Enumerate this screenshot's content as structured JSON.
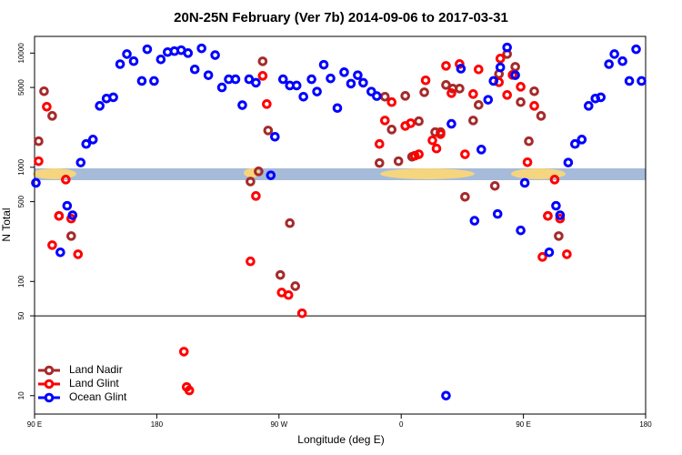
{
  "chart_data": {
    "type": "scatter",
    "title": "20N-25N February (Ver 7b)   2014-09-06 to 2017-03-31",
    "x_label": "Longitude (deg E)",
    "y_label": "N Total",
    "log_y": true,
    "legend": "bottom-left",
    "reference_line": 50,
    "xlim": [
      90,
      540
    ],
    "ylim": [
      6.9,
      14000
    ],
    "xticks": [
      {
        "value": 90,
        "label": "90 E"
      },
      180,
      {
        "value": 270,
        "label": "90 W"
      },
      {
        "value": 360,
        "label": "0"
      },
      {
        "value": 450,
        "label": "90 E"
      },
      {
        "value": 540,
        "label": "180"
      }
    ],
    "yticks": [
      10,
      50,
      100,
      500,
      1000,
      5000,
      10000
    ],
    "series": [
      {
        "name": "Land Nadir",
        "color": "#a52a2a",
        "x": [
          93,
          97,
          103,
          108,
          117,
          249,
          255,
          258,
          262,
          271,
          278,
          282,
          344,
          348,
          353,
          358,
          363,
          368,
          373,
          377,
          385,
          389,
          393,
          398,
          403,
          407,
          413,
          417,
          429,
          432,
          438,
          444,
          448,
          454,
          458,
          463,
          468,
          476
        ],
        "values": [
          1690,
          4630,
          2820,
          375,
          250,
          750,
          920,
          8470,
          2100,
          114,
          324,
          91,
          1090,
          4150,
          2140,
          1130,
          4220,
          1236,
          2530,
          4540,
          2030,
          2030,
          5260,
          4890,
          4890,
          551,
          2570,
          3515,
          687,
          6560,
          9820,
          7590,
          3720,
          1690,
          4630,
          2820,
          375,
          250
        ]
      },
      {
        "name": "Land Glint",
        "color": "#ff0000",
        "x": [
          93,
          99,
          103,
          108,
          113,
          117,
          122,
          200,
          202,
          204,
          249,
          253,
          258,
          261,
          272,
          277,
          287,
          344,
          348,
          353,
          363,
          367,
          370,
          373,
          378,
          383,
          386,
          389,
          393,
          397,
          403,
          407,
          413,
          417,
          432,
          433,
          438,
          442,
          448,
          453,
          458,
          464,
          468,
          473,
          477,
          482
        ],
        "values": [
          1130,
          3390,
          208,
          375,
          780,
          355,
          173,
          24.3,
          11.9,
          11.1,
          150,
          561,
          6320,
          3580,
          80,
          76,
          52.6,
          1600,
          2570,
          3720,
          2300,
          2430,
          1260,
          1300,
          5770,
          1720,
          1460,
          1950,
          7730,
          4460,
          8020,
          1300,
          4380,
          7190,
          5560,
          8960,
          4300,
          6440,
          5070,
          1107,
          3450,
          164,
          375,
          780,
          355,
          173
        ]
      },
      {
        "name": "Ocean Glint",
        "color": "#0000ff",
        "x": [
          91,
          109,
          114,
          118,
          124,
          128,
          133,
          138,
          143,
          148,
          153,
          158,
          163,
          169,
          173,
          178,
          183,
          188,
          193,
          198,
          203,
          208,
          213,
          218,
          223,
          228,
          233,
          238,
          243,
          248,
          253,
          264,
          267,
          273,
          278,
          283,
          288,
          294,
          298,
          303,
          308,
          313,
          318,
          323,
          328,
          332,
          338,
          342,
          393,
          397,
          404,
          414,
          419,
          424,
          428,
          431,
          433,
          438,
          444,
          448,
          451,
          469,
          474,
          477,
          483,
          488,
          493,
          498,
          503,
          507,
          513,
          517,
          523,
          528,
          533,
          537
        ],
        "values": [
          730,
          180,
          460,
          380,
          1100,
          1600,
          1750,
          3450,
          4000,
          4100,
          8000,
          9800,
          8500,
          5700,
          10800,
          5700,
          8800,
          10200,
          10400,
          10600,
          10000,
          7200,
          11000,
          6400,
          9600,
          5000,
          5900,
          5900,
          3500,
          5900,
          5500,
          850,
          1850,
          5900,
          5200,
          5200,
          4150,
          5900,
          4600,
          7900,
          6000,
          3300,
          6800,
          5400,
          6400,
          5500,
          4600,
          4200,
          10,
          2400,
          7300,
          340,
          1430,
          3900,
          5700,
          390,
          7500,
          11200,
          6400,
          280,
          730,
          180,
          460,
          380,
          1100,
          1600,
          1750,
          3450,
          4000,
          4100,
          8000,
          9800,
          8500,
          5700,
          10800,
          5700
        ]
      }
    ]
  }
}
